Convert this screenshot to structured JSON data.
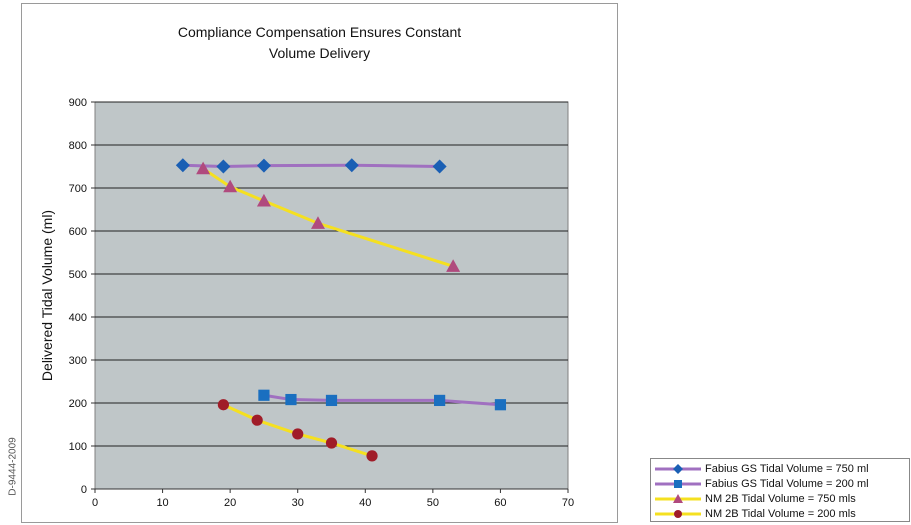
{
  "chart_data": {
    "type": "line",
    "title_lines": [
      "Compliance Compensation Ensures Constant",
      "Volume Delivery"
    ],
    "xlabel": "",
    "ylabel": "Delivered Tidal Volume (ml)",
    "xlim": [
      0,
      70
    ],
    "ylim": [
      0,
      900
    ],
    "x_ticks": [
      "0",
      "10",
      "20",
      "30",
      "40",
      "50",
      "60",
      "70"
    ],
    "y_ticks": [
      "0",
      "100",
      "200",
      "300",
      "400",
      "500",
      "600",
      "700",
      "800",
      "900"
    ],
    "grid": true,
    "plot_background": "#bfc6c8",
    "legend_position": "bottom-right",
    "series": [
      {
        "name": "Fabius GS Tidal Volume = 750 ml",
        "marker": "diamond",
        "line_color": "#a070c0",
        "marker_color": "#1a5fb4",
        "points": [
          [
            13,
            753
          ],
          [
            19,
            750
          ],
          [
            25,
            752
          ],
          [
            38,
            753
          ],
          [
            51,
            750
          ]
        ]
      },
      {
        "name": "Fabius GS Tidal Volume = 200 ml",
        "marker": "square",
        "line_color": "#a070c0",
        "marker_color": "#1a6fc0",
        "points": [
          [
            25,
            218
          ],
          [
            29,
            208
          ],
          [
            35,
            206
          ],
          [
            51,
            206
          ],
          [
            60,
            196
          ]
        ]
      },
      {
        "name": "NM 2B Tidal Volume = 750 mls",
        "marker": "triangle",
        "line_color": "#f5e020",
        "marker_color": "#b04a7e",
        "points": [
          [
            16,
            745
          ],
          [
            20,
            703
          ],
          [
            25,
            670
          ],
          [
            33,
            618
          ],
          [
            53,
            518
          ]
        ]
      },
      {
        "name": "NM 2B Tidal Volume = 200 mls",
        "marker": "circle",
        "line_color": "#f5e020",
        "marker_color": "#a01c28",
        "points": [
          [
            19,
            196
          ],
          [
            24,
            160
          ],
          [
            30,
            128
          ],
          [
            35,
            107
          ],
          [
            41,
            77
          ]
        ]
      }
    ]
  },
  "side_code": "D-9444-2009"
}
